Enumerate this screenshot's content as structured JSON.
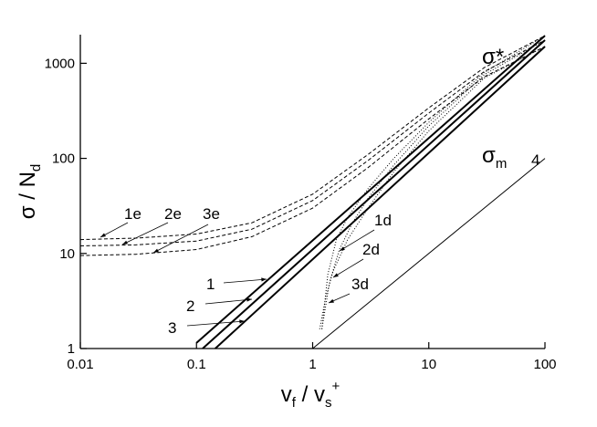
{
  "chart_data": {
    "type": "line",
    "log_x": true,
    "log_y": true,
    "xlabel": [
      "v",
      "f",
      " / v",
      "s",
      "+"
    ],
    "ylabel": [
      "σ / N",
      "d"
    ],
    "xlim": [
      0.01,
      100
    ],
    "xticks": [
      0.01,
      0.1,
      1,
      10,
      100
    ],
    "ylim": [
      1,
      2000
    ],
    "yticks": [
      1,
      10,
      100,
      1000
    ],
    "series": [
      {
        "name": "1",
        "style": "solid",
        "color": "#000000",
        "x": [
          0.1,
          100
        ],
        "values": [
          1.15,
          1950
        ]
      },
      {
        "name": "2",
        "style": "solid",
        "color": "#000000",
        "x": [
          0.113,
          100
        ],
        "values": [
          1,
          1750
        ]
      },
      {
        "name": "3",
        "style": "solid",
        "color": "#000000",
        "x": [
          0.145,
          100
        ],
        "values": [
          1,
          1500
        ]
      },
      {
        "name": "4",
        "style": "thin",
        "color": "#000000",
        "x": [
          1,
          100
        ],
        "values": [
          1,
          100
        ]
      },
      {
        "name": "1e",
        "style": "dashed",
        "color": "#000000",
        "x": [
          0.01,
          0.03,
          0.1,
          0.3,
          1,
          3,
          10,
          30,
          100
        ],
        "values": [
          14,
          14.5,
          16,
          21,
          42,
          110,
          340,
          900,
          1950
        ]
      },
      {
        "name": "2e",
        "style": "dashed",
        "color": "#000000",
        "x": [
          0.01,
          0.03,
          0.1,
          0.3,
          1,
          3,
          10,
          30,
          100
        ],
        "values": [
          12,
          12.3,
          13.5,
          18,
          36,
          95,
          300,
          820,
          1750
        ]
      },
      {
        "name": "3e",
        "style": "dashed",
        "color": "#000000",
        "x": [
          0.01,
          0.03,
          0.1,
          0.3,
          1,
          3,
          10,
          30,
          100
        ],
        "values": [
          9.5,
          9.8,
          11,
          15,
          30,
          80,
          260,
          720,
          1500
        ]
      },
      {
        "name": "1d",
        "style": "dotted",
        "color": "#000000",
        "x": [
          1.2,
          1.35,
          1.6,
          2,
          3,
          5,
          10,
          30,
          100
        ],
        "values": [
          1.6,
          6,
          14,
          24,
          48,
          100,
          240,
          800,
          1950
        ]
      },
      {
        "name": "2d",
        "style": "dotted",
        "color": "#000000",
        "x": [
          1.2,
          1.4,
          1.7,
          2.2,
          3,
          5,
          10,
          30,
          100
        ],
        "values": [
          1.6,
          5,
          11,
          21,
          38,
          85,
          220,
          760,
          1750
        ]
      },
      {
        "name": "3d",
        "style": "dotted",
        "color": "#000000",
        "x": [
          1.15,
          1.3,
          1.5,
          2,
          3,
          5,
          10,
          30,
          100
        ],
        "values": [
          1.6,
          3.5,
          6.5,
          14,
          30,
          72,
          195,
          700,
          1500
        ]
      }
    ],
    "annotations": [
      [
        "σ*"
      ],
      [
        "σ",
        "m"
      ]
    ]
  }
}
